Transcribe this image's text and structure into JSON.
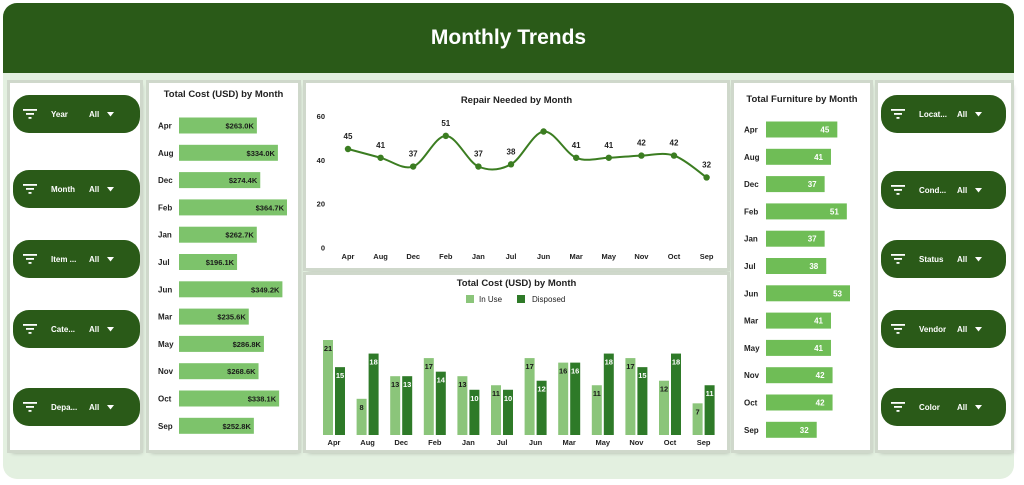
{
  "header": {
    "title": "Monthly Trends"
  },
  "colors": {
    "dark_green": "#2a5a18",
    "bar_light": "#7dc36b",
    "bar_in_use": "#8bc57a",
    "bar_disposed": "#2e7a28",
    "line": "#3b7d21"
  },
  "slicers_left": [
    {
      "label": "Year",
      "value": "All",
      "icon": "filter-icon"
    },
    {
      "label": "Month",
      "value": "All",
      "icon": "filter-icon"
    },
    {
      "label": "Item ...",
      "value": "All",
      "icon": "filter-icon"
    },
    {
      "label": "Cate...",
      "value": "All",
      "icon": "filter-icon"
    },
    {
      "label": "Depa...",
      "value": "All",
      "icon": "filter-icon"
    }
  ],
  "slicers_right": [
    {
      "label": "Locat...",
      "value": "All",
      "icon": "filter-icon"
    },
    {
      "label": "Cond...",
      "value": "All",
      "icon": "filter-icon"
    },
    {
      "label": "Status",
      "value": "All",
      "icon": "filter-icon"
    },
    {
      "label": "Vendor",
      "value": "All",
      "icon": "filter-icon"
    },
    {
      "label": "Color",
      "value": "All",
      "icon": "filter-icon"
    }
  ],
  "chart_data": [
    {
      "type": "bar",
      "orientation": "horizontal",
      "title": "Total Cost (USD) by Month",
      "categories": [
        "Apr",
        "Aug",
        "Dec",
        "Feb",
        "Jan",
        "Jul",
        "Jun",
        "Mar",
        "May",
        "Nov",
        "Oct",
        "Sep"
      ],
      "values": [
        263.0,
        334.0,
        274.4,
        364.7,
        262.7,
        196.1,
        349.2,
        235.6,
        286.8,
        268.6,
        338.1,
        252.8
      ],
      "labels": [
        "$263.0K",
        "$334.0K",
        "$274.4K",
        "$364.7K",
        "$262.7K",
        "$196.1K",
        "$349.2K",
        "$235.6K",
        "$286.8K",
        "$268.6K",
        "$338.1K",
        "$252.8K"
      ],
      "xlim": [
        0,
        400
      ]
    },
    {
      "type": "line",
      "title": "Repair Needed by Month",
      "categories": [
        "Apr",
        "Aug",
        "Dec",
        "Feb",
        "Jan",
        "Jul",
        "Jun",
        "Mar",
        "May",
        "Nov",
        "Oct",
        "Sep"
      ],
      "values": [
        45,
        41,
        37,
        51,
        37,
        38,
        53,
        41,
        41,
        42,
        42,
        32
      ],
      "labels": [
        "45",
        "41",
        "37",
        "51",
        "37",
        "38",
        "",
        "41",
        "41",
        "42",
        "42",
        "32"
      ],
      "yticks": [
        "0",
        "20",
        "40",
        "60"
      ],
      "ylim": [
        0,
        60
      ]
    },
    {
      "type": "bar",
      "orientation": "vertical",
      "title": "Total Cost (USD) by Month",
      "categories": [
        "Apr",
        "Aug",
        "Dec",
        "Feb",
        "Jan",
        "Jul",
        "Jun",
        "Mar",
        "May",
        "Nov",
        "Oct",
        "Sep"
      ],
      "legend": [
        "In Use",
        "Disposed"
      ],
      "series": [
        {
          "name": "In Use",
          "values": [
            21,
            8,
            13,
            17,
            13,
            11,
            17,
            16,
            11,
            17,
            12,
            7
          ]
        },
        {
          "name": "Disposed",
          "values": [
            15,
            18,
            13,
            14,
            10,
            10,
            12,
            16,
            18,
            15,
            18,
            11
          ]
        }
      ],
      "ylim": [
        0,
        22
      ]
    },
    {
      "type": "bar",
      "orientation": "horizontal",
      "title": "Total Furniture by Month",
      "categories": [
        "Apr",
        "Aug",
        "Dec",
        "Feb",
        "Jan",
        "Jul",
        "Jun",
        "Mar",
        "May",
        "Nov",
        "Oct",
        "Sep"
      ],
      "values": [
        45,
        41,
        37,
        51,
        37,
        38,
        53,
        41,
        41,
        42,
        42,
        32
      ],
      "xlim": [
        0,
        60
      ]
    }
  ]
}
